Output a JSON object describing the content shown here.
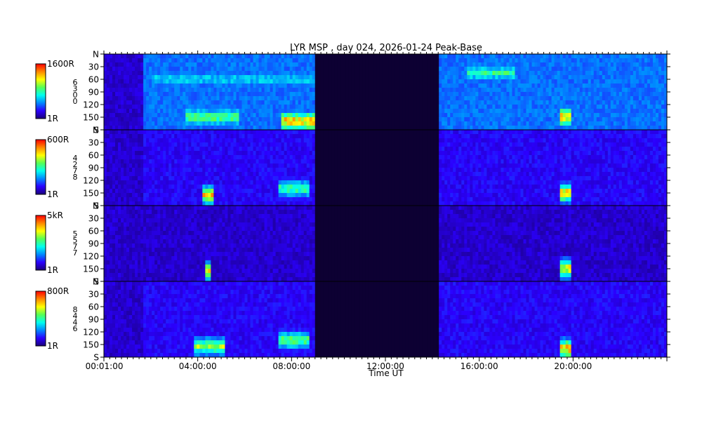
{
  "chart_data": {
    "type": "heatmap",
    "title": "LYR MSP , day 024, 2026-01-24 Peak-Base",
    "xlabel": "Time UT",
    "x_tick_labels": [
      "00:01:00",
      "04:00:00",
      "08:00:00",
      "12:00:00",
      "16:00:00",
      "20:00:00"
    ],
    "x_tick_hours": [
      0.0167,
      4,
      8,
      12,
      16,
      20
    ],
    "xlim_hours": [
      0,
      24
    ],
    "y_tick_labels": [
      "N",
      "30",
      "60",
      "90",
      "120",
      "150",
      "S"
    ],
    "y_tick_values": [
      0,
      30,
      60,
      90,
      120,
      150,
      180
    ],
    "ylim": [
      0,
      180
    ],
    "data_gap_hours": [
      9.0,
      14.25
    ],
    "colormap": [
      "#1a007a",
      "#2b00ff",
      "#0088ff",
      "#00ffee",
      "#55ff55",
      "#ffff00",
      "#ff8800",
      "#ff0000"
    ],
    "panels": [
      {
        "colorbar_max_label": "1600R",
        "colorbar_min_label": "1R",
        "channel_label": [
          "6",
          "3",
          "0",
          "0"
        ],
        "intensity": "high",
        "features": [
          {
            "name": "broad-arc",
            "t_start": 2.0,
            "t_end": 9.0,
            "zenith_center": 60,
            "level": 0.45
          },
          {
            "name": "equatorward-band",
            "t_start": 3.5,
            "t_end": 5.8,
            "zenith_center": 150,
            "level": 0.65
          },
          {
            "name": "morning-surge",
            "t_start": 7.6,
            "t_end": 9.0,
            "zenith_center": 160,
            "level": 0.95
          },
          {
            "name": "afternoon-arc",
            "t_start": 15.5,
            "t_end": 17.5,
            "zenith_center": 45,
            "level": 0.55
          },
          {
            "name": "evening-breakup",
            "t_start": 19.4,
            "t_end": 19.9,
            "zenith_center": 150,
            "level": 0.95
          }
        ]
      },
      {
        "colorbar_max_label": "600R",
        "colorbar_min_label": "1R",
        "channel_label": [
          "4",
          "2",
          "7",
          "8"
        ],
        "intensity": "medium",
        "features": [
          {
            "name": "spot",
            "t_start": 4.2,
            "t_end": 4.7,
            "zenith_center": 155,
            "level": 0.85
          },
          {
            "name": "morning-surge",
            "t_start": 7.5,
            "t_end": 8.8,
            "zenith_center": 140,
            "level": 0.6
          },
          {
            "name": "evening-breakup",
            "t_start": 19.4,
            "t_end": 19.9,
            "zenith_center": 150,
            "level": 0.9
          }
        ]
      },
      {
        "colorbar_max_label": "5kR",
        "colorbar_min_label": "1R",
        "channel_label": [
          "5",
          "5",
          "7",
          "7"
        ],
        "intensity": "low",
        "features": [
          {
            "name": "spot",
            "t_start": 4.3,
            "t_end": 4.6,
            "zenith_center": 155,
            "level": 0.8
          },
          {
            "name": "evening-breakup",
            "t_start": 19.4,
            "t_end": 19.9,
            "zenith_center": 150,
            "level": 0.85
          }
        ]
      },
      {
        "colorbar_max_label": "800R",
        "colorbar_min_label": "1R",
        "channel_label": [
          "8",
          "4",
          "4",
          "6"
        ],
        "intensity": "medium",
        "features": [
          {
            "name": "equatorward-band",
            "t_start": 3.8,
            "t_end": 5.2,
            "zenith_center": 155,
            "level": 0.7
          },
          {
            "name": "morning-surge",
            "t_start": 7.5,
            "t_end": 8.8,
            "zenith_center": 140,
            "level": 0.65
          },
          {
            "name": "evening-breakup",
            "t_start": 19.4,
            "t_end": 19.9,
            "zenith_center": 160,
            "level": 0.95
          }
        ]
      }
    ]
  }
}
